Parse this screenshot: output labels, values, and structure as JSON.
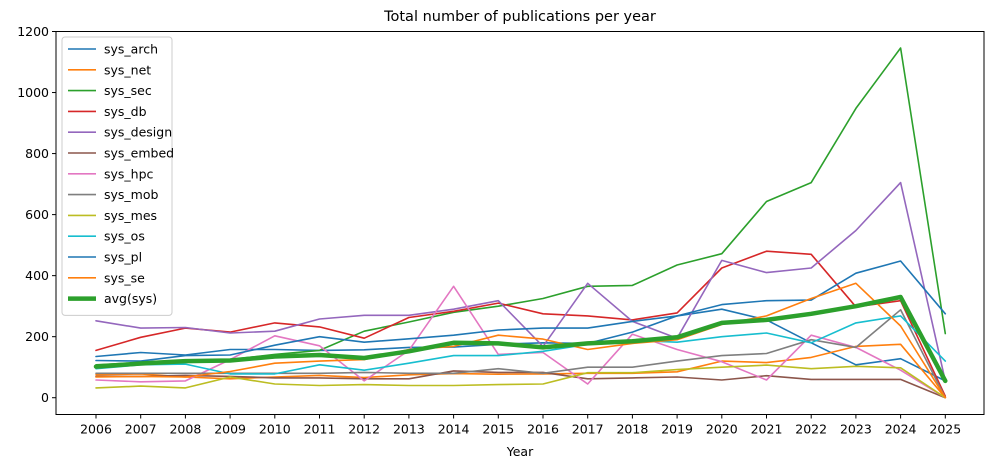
{
  "chart_data": {
    "type": "line",
    "title": "Total number of publications per year",
    "xlabel": "Year",
    "ylabel": "",
    "ylim": [
      -55,
      1200
    ],
    "yticks": [
      0,
      200,
      400,
      600,
      800,
      1000,
      1200
    ],
    "grid": false,
    "legend_position": "top-left",
    "categories": [
      "2006",
      "2007",
      "2008",
      "2009",
      "2010",
      "2011",
      "2012",
      "2013",
      "2014",
      "2015",
      "2016",
      "2017",
      "2018",
      "2019",
      "2020",
      "2021",
      "2022",
      "2023",
      "2024",
      "2025"
    ],
    "series": [
      {
        "name": "sys_arch",
        "color": "#1f77b4",
        "values": [
          135,
          148,
          140,
          158,
          158,
          155,
          157,
          165,
          166,
          175,
          180,
          178,
          215,
          268,
          290,
          255,
          180,
          108,
          128,
          55
        ]
      },
      {
        "name": "sys_net",
        "color": "#ff7f0e",
        "values": [
          75,
          78,
          68,
          62,
          68,
          73,
          66,
          75,
          79,
          77,
          78,
          80,
          80,
          85,
          120,
          115,
          132,
          168,
          175,
          0
        ]
      },
      {
        "name": "sys_sec",
        "color": "#2ca02c",
        "values": [
          108,
          115,
          120,
          125,
          142,
          155,
          218,
          248,
          280,
          300,
          325,
          365,
          368,
          435,
          472,
          643,
          705,
          948,
          1146,
          210
        ]
      },
      {
        "name": "sys_db",
        "color": "#d62728",
        "values": [
          155,
          198,
          228,
          215,
          245,
          232,
          195,
          263,
          283,
          310,
          275,
          268,
          255,
          278,
          425,
          480,
          470,
          298,
          318,
          5
        ]
      },
      {
        "name": "sys_design",
        "color": "#9467bd",
        "values": [
          252,
          228,
          230,
          212,
          218,
          258,
          270,
          270,
          290,
          318,
          168,
          375,
          250,
          195,
          450,
          410,
          425,
          548,
          705,
          55
        ]
      },
      {
        "name": "sys_embed",
        "color": "#8c564b",
        "values": [
          70,
          70,
          73,
          70,
          65,
          65,
          62,
          62,
          88,
          83,
          83,
          62,
          65,
          68,
          58,
          72,
          60,
          60,
          60,
          0
        ]
      },
      {
        "name": "sys_hpc",
        "color": "#e377c2",
        "values": [
          58,
          52,
          55,
          125,
          203,
          170,
          55,
          155,
          365,
          142,
          148,
          45,
          208,
          158,
          118,
          58,
          205,
          165,
          90,
          0
        ]
      },
      {
        "name": "sys_mob",
        "color": "#7f7f7f",
        "values": [
          80,
          80,
          80,
          80,
          80,
          80,
          83,
          80,
          80,
          95,
          80,
          100,
          100,
          120,
          138,
          145,
          190,
          165,
          288,
          0
        ]
      },
      {
        "name": "sys_mes",
        "color": "#bcbd22",
        "values": [
          32,
          38,
          32,
          68,
          45,
          40,
          43,
          40,
          40,
          43,
          45,
          82,
          82,
          92,
          100,
          107,
          95,
          103,
          98,
          0
        ]
      },
      {
        "name": "sys_os",
        "color": "#17becf",
        "values": [
          95,
          108,
          110,
          78,
          78,
          108,
          90,
          113,
          138,
          138,
          152,
          175,
          188,
          182,
          200,
          212,
          180,
          245,
          268,
          120
        ]
      },
      {
        "name": "sys_pl",
        "color": "#1f77b4",
        "values": [
          122,
          120,
          138,
          140,
          172,
          200,
          182,
          193,
          205,
          222,
          228,
          228,
          250,
          268,
          305,
          318,
          320,
          408,
          448,
          275
        ]
      },
      {
        "name": "sys_se",
        "color": "#ff7f0e",
        "values": [
          68,
          70,
          68,
          86,
          113,
          120,
          125,
          158,
          168,
          205,
          192,
          158,
          178,
          190,
          240,
          268,
          325,
          375,
          235,
          0
        ]
      },
      {
        "name": "avg(sys)",
        "color": "#2ca02c",
        "thick": true,
        "values": [
          102,
          112,
          120,
          122,
          135,
          140,
          130,
          152,
          180,
          178,
          165,
          178,
          185,
          198,
          245,
          255,
          275,
          300,
          330,
          55
        ]
      }
    ]
  }
}
